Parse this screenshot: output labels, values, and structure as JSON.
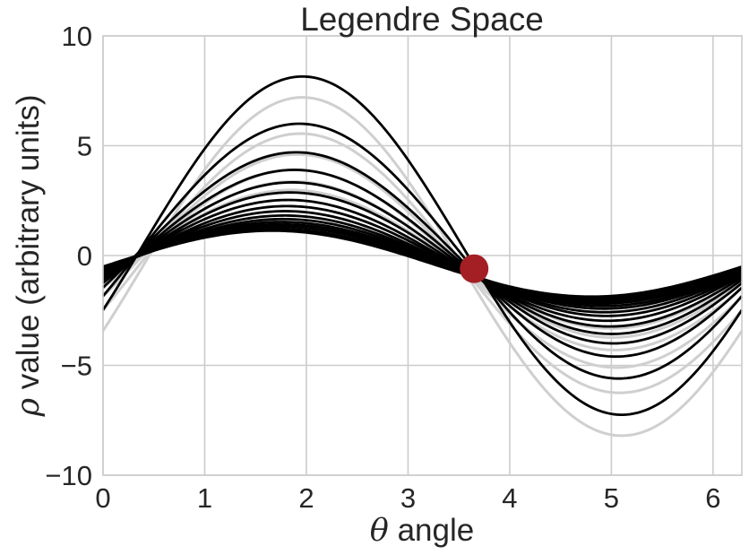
{
  "chart_data": {
    "type": "line",
    "title": "Legendre Space",
    "xlabel_symbol": "θ",
    "xlabel_text": " angle",
    "ylabel_symbol": "ρ",
    "ylabel_text": " value (arbitrary units)",
    "xlim": [
      0,
      6.283
    ],
    "ylim": [
      -10,
      10
    ],
    "xticks": [
      0,
      1,
      2,
      3,
      4,
      5,
      6
    ],
    "xtick_labels": [
      "0",
      "1",
      "2",
      "3",
      "4",
      "5",
      "6"
    ],
    "yticks": [
      10,
      5,
      0,
      -5,
      -10
    ],
    "ytick_labels": [
      "10",
      "5",
      "0",
      "−5",
      "−10"
    ],
    "grid": true,
    "curve_model": "rho = offset + amplitude * sin(theta - phase)",
    "black_series": [
      {
        "offset": 0.45,
        "amplitude": 7.7,
        "phase": 0.39
      },
      {
        "offset": 0.2,
        "amplitude": 5.8,
        "phase": 0.36
      },
      {
        "offset": 0.05,
        "amplitude": 4.65,
        "phase": 0.33
      },
      {
        "offset": -0.05,
        "amplitude": 3.95,
        "phase": 0.31
      },
      {
        "offset": -0.12,
        "amplitude": 3.45,
        "phase": 0.29
      },
      {
        "offset": -0.18,
        "amplitude": 3.05,
        "phase": 0.27
      },
      {
        "offset": -0.22,
        "amplitude": 2.75,
        "phase": 0.25
      },
      {
        "offset": -0.25,
        "amplitude": 2.5,
        "phase": 0.24
      },
      {
        "offset": -0.28,
        "amplitude": 2.3,
        "phase": 0.22
      },
      {
        "offset": -0.3,
        "amplitude": 2.12,
        "phase": 0.21
      },
      {
        "offset": -0.32,
        "amplitude": 1.98,
        "phase": 0.2
      },
      {
        "offset": -0.33,
        "amplitude": 1.86,
        "phase": 0.18
      },
      {
        "offset": -0.34,
        "amplitude": 1.76,
        "phase": 0.17
      },
      {
        "offset": -0.35,
        "amplitude": 1.67,
        "phase": 0.15
      },
      {
        "offset": -0.36,
        "amplitude": 1.58,
        "phase": 0.12
      },
      {
        "offset": -0.37,
        "amplitude": 1.5,
        "phase": 0.09
      }
    ],
    "gray_series": [
      {
        "offset": -0.5,
        "amplitude": 7.7,
        "phase": 0.39
      },
      {
        "offset": -0.35,
        "amplitude": 5.9,
        "phase": 0.37
      },
      {
        "offset": -0.25,
        "amplitude": 4.85,
        "phase": 0.34
      },
      {
        "offset": -0.2,
        "amplitude": 4.1,
        "phase": 0.32
      },
      {
        "offset": -0.18,
        "amplitude": 3.55,
        "phase": 0.3
      },
      {
        "offset": -0.17,
        "amplitude": 3.15,
        "phase": 0.28
      }
    ],
    "marker": {
      "x": 3.65,
      "y": -0.6,
      "color": "#a31f23"
    },
    "colors": {
      "black": "#000000",
      "gray": "#cfcfcf",
      "grid": "#cccccc",
      "text": "#262626"
    }
  }
}
